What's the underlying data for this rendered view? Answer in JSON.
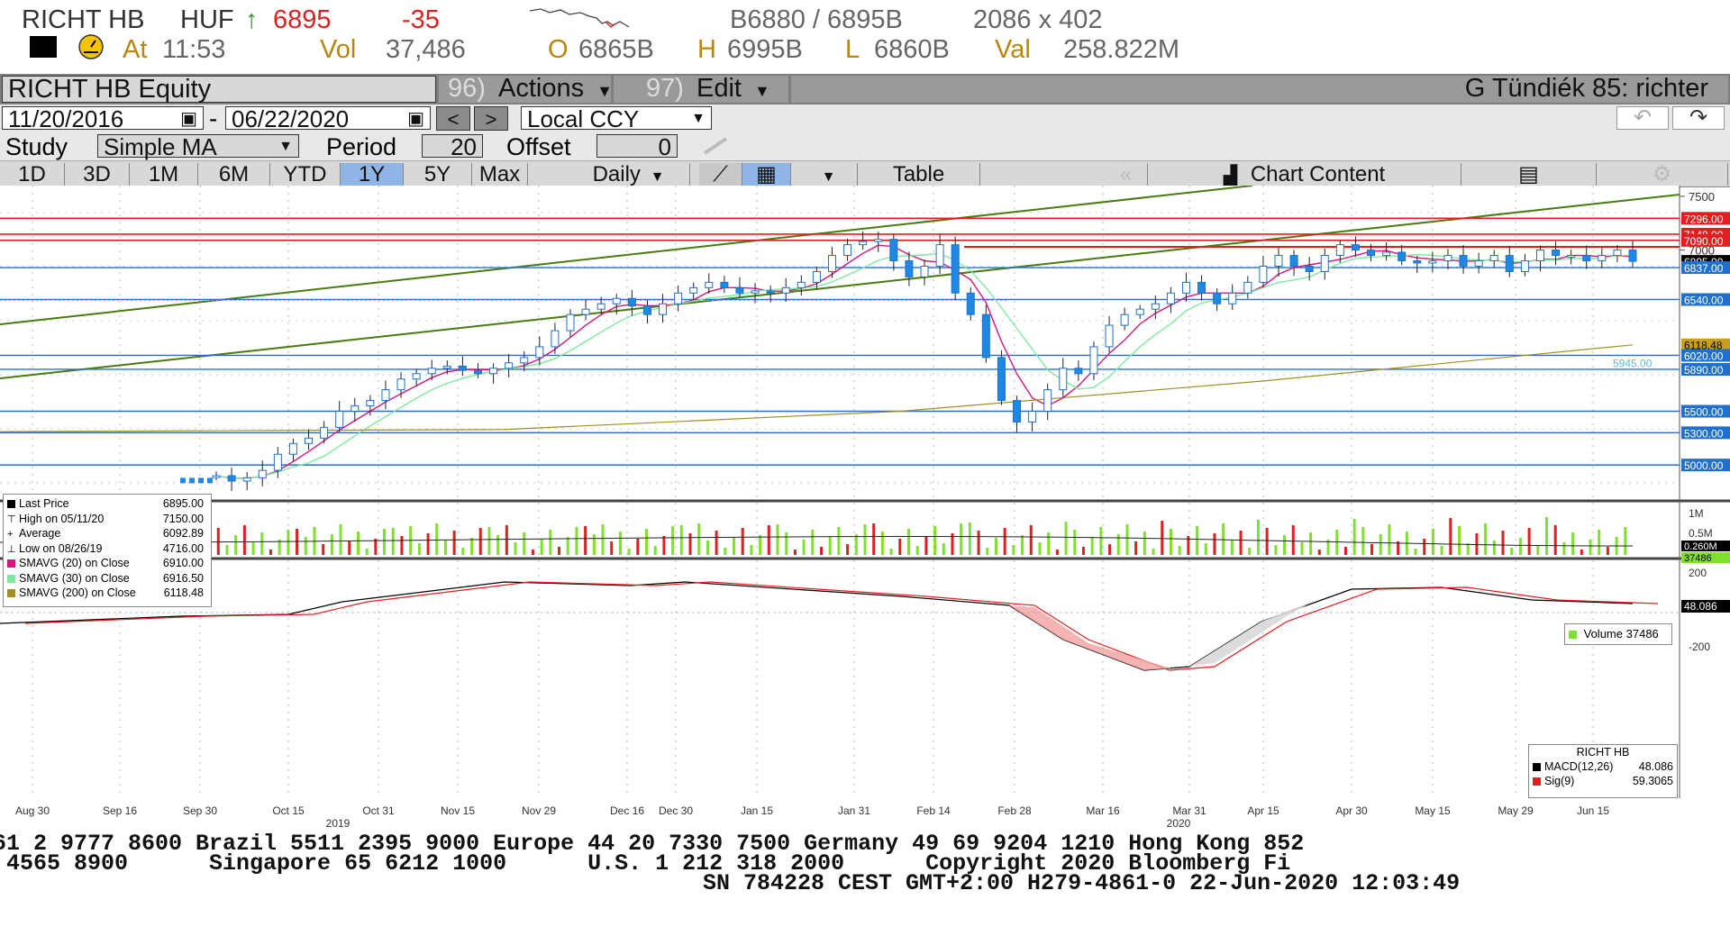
{
  "header": {
    "ticker": "RICHT HB",
    "currency": "HUF",
    "up_arrow": "↑",
    "last": "6895",
    "change": "-35",
    "bid_ask": "B6880 / 6895B",
    "size": "2086 x 402",
    "at_label": "At",
    "time": "11:53",
    "vol_label": "Vol",
    "vol": "37,486",
    "open_label": "O",
    "open": "6865B",
    "high_label": "H",
    "high": "6995B",
    "low_label": "L",
    "low": "6860B",
    "val_label": "Val",
    "val": "258.822M",
    "accent_red": "#e02020",
    "accent_amber": "#b8860b"
  },
  "toolbar": {
    "equity": "RICHT HB Equity",
    "actions_num": "96)",
    "actions": "Actions",
    "edit_num": "97)",
    "edit": "Edit",
    "title": "G Tündiék 85: richter",
    "undo_icon": "undo-icon",
    "redo_icon": "redo-icon"
  },
  "range": {
    "start": "11/20/2016",
    "sep": "-",
    "end": "06/22/2020",
    "prev": "<",
    "next": ">",
    "ccy": "Local CCY"
  },
  "study": {
    "label": "Study",
    "value": "Simple MA",
    "period_label": "Period",
    "period": "20",
    "offset_label": "Offset",
    "offset": "0"
  },
  "tabs": [
    "1D",
    "3D",
    "1M",
    "6M",
    "YTD",
    "1Y",
    "5Y",
    "Max"
  ],
  "active_tab": "1Y",
  "daily": "Daily",
  "table": "Table",
  "chart_content": "Chart Content",
  "legend": {
    "rows": [
      {
        "label": "Last Price",
        "value": "6895.00",
        "color": "#000000"
      },
      {
        "label": "High on 05/11/20",
        "value": "7150.00",
        "color": "#000000"
      },
      {
        "label": "Average",
        "value": "6092.89",
        "color": "#000000"
      },
      {
        "label": "Low on 08/26/19",
        "value": "4716.00",
        "color": "#000000"
      },
      {
        "label": "SMAVG (20)  on Close",
        "value": "6910.00",
        "color": "#d01880"
      },
      {
        "label": "SMAVG (30)  on Close",
        "value": "6916.50",
        "color": "#80e8a0"
      },
      {
        "label": "SMAVG (200)  on Close",
        "value": "6118.48",
        "color": "#a09020"
      }
    ]
  },
  "volume_legend": {
    "label": "Volume",
    "value": "37486"
  },
  "macd_legend": {
    "title": "RICHT HB",
    "rows": [
      {
        "label": "MACD(12,26)",
        "value": "48.086",
        "color": "#000000"
      },
      {
        "label": "Sig(9)",
        "value": "59.3065",
        "color": "#e02020"
      }
    ]
  },
  "chart_data": {
    "type": "candlestick",
    "y_range": [
      4716,
      7550
    ],
    "y_ticks": [
      "7500",
      "7000"
    ],
    "price_tags": [
      {
        "label": "7296.00",
        "color": "#e02020"
      },
      {
        "label": "7148.00",
        "color": "#e02020"
      },
      {
        "label": "7090.00",
        "color": "#e02020"
      },
      {
        "label": "6895.00",
        "color": "#000000"
      },
      {
        "label": "6837.00",
        "color": "#2070d0"
      },
      {
        "label": "6540.00",
        "color": "#2070d0"
      },
      {
        "label": "6118.48",
        "color": "#c8a018"
      },
      {
        "label": "6020.00",
        "color": "#2070d0"
      },
      {
        "label": "5890.00",
        "color": "#2070d0"
      },
      {
        "label": "5500.00",
        "color": "#2070d0"
      },
      {
        "label": "5300.00",
        "color": "#2070d0"
      },
      {
        "label": "5000.00",
        "color": "#2070d0"
      }
    ],
    "hlines_red": [
      7296,
      7090,
      7148
    ],
    "hlines_blue": [
      6837,
      6540,
      6020,
      5890,
      5500,
      5300,
      5000
    ],
    "inline_label": "5945.00",
    "close_path": [
      4900,
      4850,
      4880,
      4950,
      5100,
      5200,
      5250,
      5350,
      5500,
      5550,
      5600,
      5700,
      5800,
      5850,
      5900,
      5920,
      5880,
      5850,
      5900,
      5950,
      6000,
      6100,
      6250,
      6400,
      6450,
      6500,
      6550,
      6480,
      6400,
      6500,
      6600,
      6650,
      6700,
      6650,
      6600,
      6620,
      6600,
      6650,
      6700,
      6800,
      6950,
      7050,
      7080,
      7100,
      6900,
      6750,
      6850,
      7050,
      6600,
      6400,
      6000,
      5600,
      5400,
      5500,
      5700,
      5900,
      5850,
      6100,
      6300,
      6400,
      6450,
      6500,
      6600,
      6700,
      6600,
      6500,
      6600,
      6700,
      6850,
      6950,
      6850,
      6800,
      6950,
      7050,
      7000,
      6950,
      6980,
      6900,
      6880,
      6900,
      6950,
      6850,
      6900,
      6950,
      6800,
      6900,
      7000,
      6950,
      6950,
      6900,
      6950,
      7000,
      6895
    ],
    "x_ticks": [
      "Aug 30",
      "Sep 16",
      "Sep 30",
      "Oct 15",
      "Oct 31",
      "Nov 15",
      "Nov 29",
      "Dec 16",
      "Dec 30",
      "Jan 15",
      "Jan 31",
      "Feb 14",
      "Feb 28",
      "Mar 16",
      "Mar 31",
      "Apr 15",
      "Apr 30",
      "May 15",
      "May 29",
      "Jun 15"
    ],
    "year_labels": [
      "2019",
      "2020"
    ],
    "volume_ticks": [
      "1M",
      "0.5M"
    ],
    "volume_tags": [
      "0.260M",
      "37486"
    ],
    "macd_ticks": [
      "200",
      "-200"
    ],
    "macd_tag": "48.086"
  },
  "footer": {
    "line1": "61 2 9777 8600 Brazil 5511 2395 9000 Europe 44 20 7330 7500 Germany 49 69 9204 1210 Hong Kong 852",
    "line2": " 4565 8900      Singapore 65 6212 1000      U.S. 1 212 318 2000      Copyright 2020 Bloomberg Fi",
    "line3": "SN 784228 CEST GMT+2:00 H279-4861-0 22-Jun-2020 12:03:49"
  }
}
